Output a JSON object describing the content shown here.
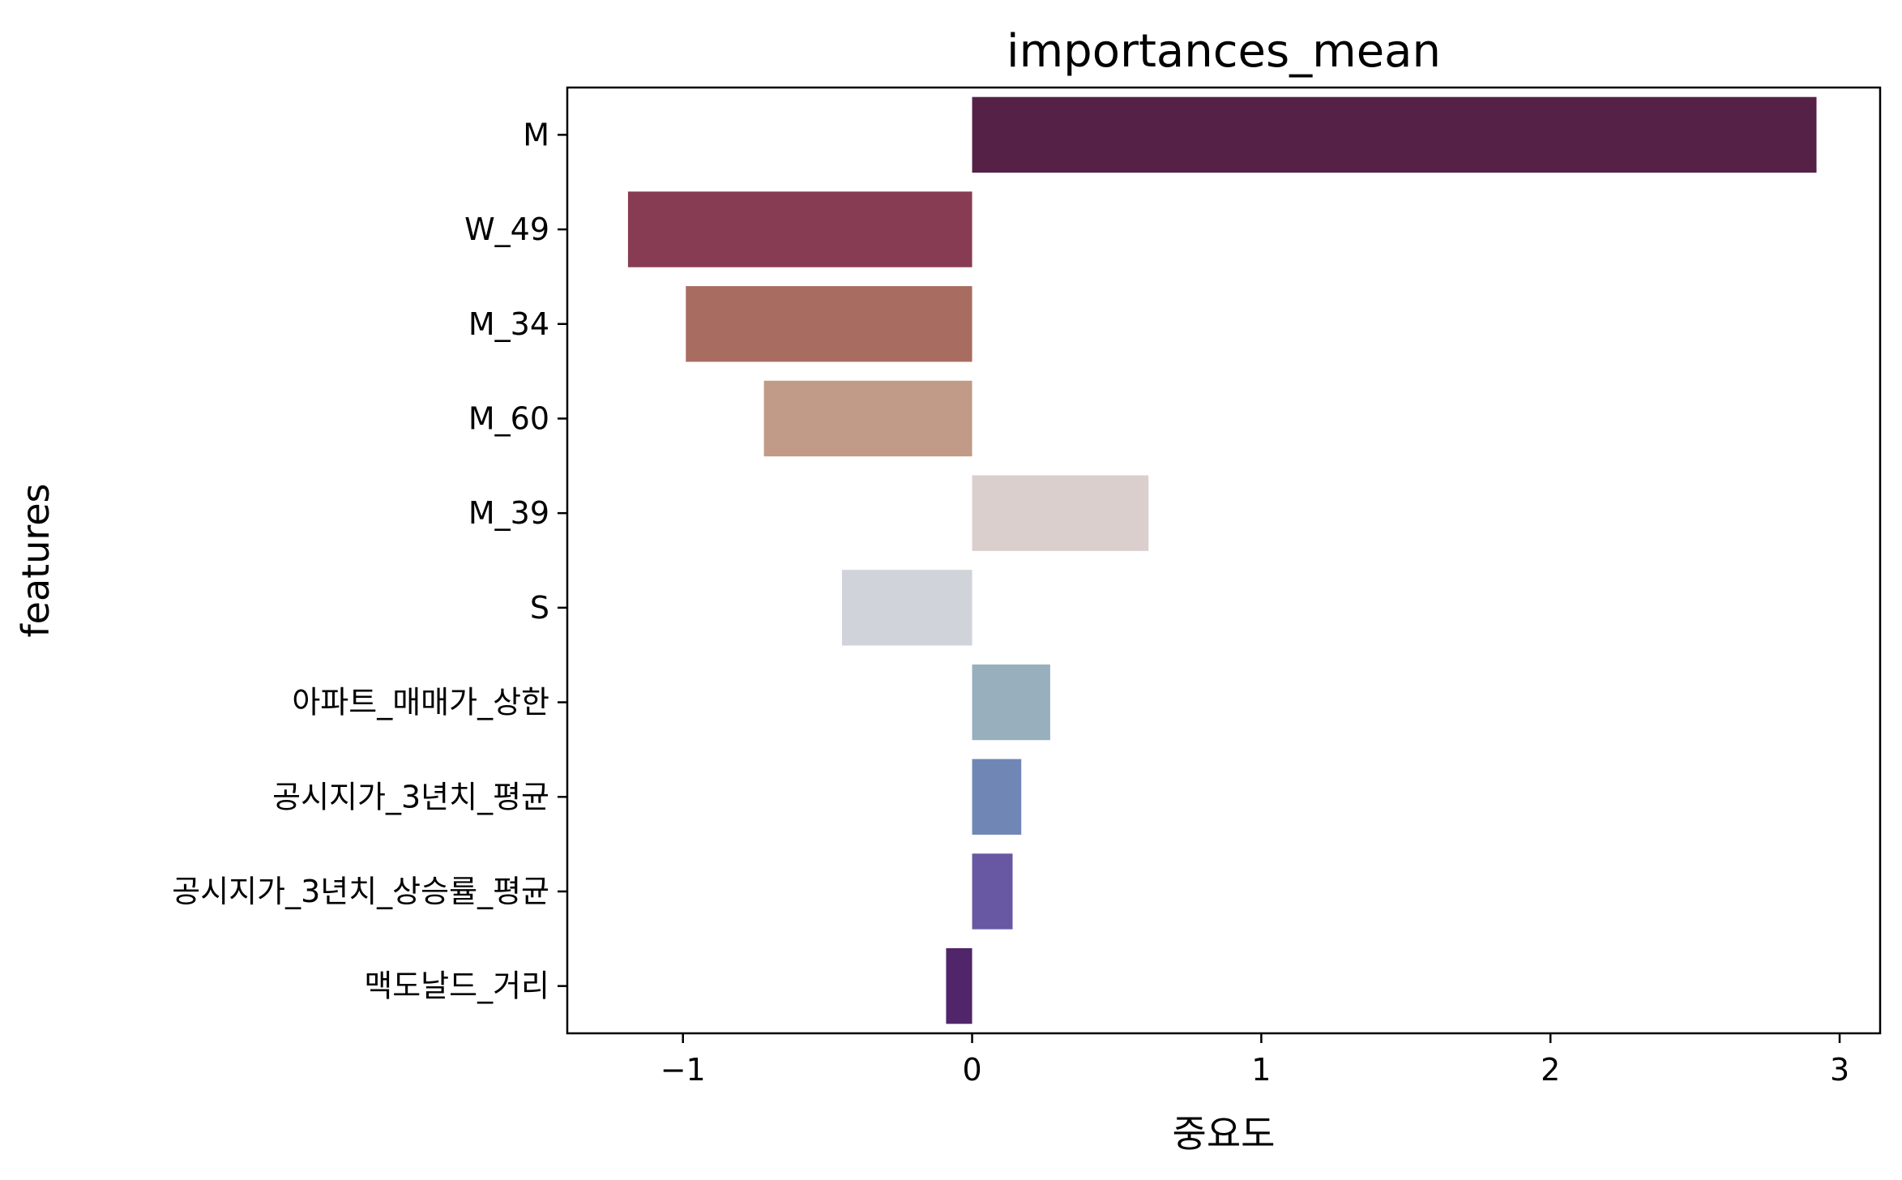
{
  "chart_data": {
    "type": "bar",
    "orientation": "horizontal",
    "title": "importances_mean",
    "xlabel": "중요도",
    "ylabel": "features",
    "categories": [
      "M",
      "W_49",
      "M_34",
      "M_60",
      "M_39",
      "S",
      "아파트_매매가_상한",
      "공시지가_3년치_평균",
      "공시지가_3년치_상승률_평균",
      "맥도날드_거리"
    ],
    "values": [
      2.92,
      -1.19,
      -0.99,
      -0.72,
      0.61,
      -0.45,
      0.27,
      0.17,
      0.14,
      -0.09
    ],
    "colors": [
      "#552146",
      "#883c54",
      "#a96c61",
      "#c19b87",
      "#dbcfcd",
      "#d0d3d9",
      "#98afbd",
      "#7087b6",
      "#6858a3",
      "#512569"
    ],
    "xlim": [
      -1.4,
      3.14
    ],
    "xticks": [
      -1,
      0,
      1,
      2,
      3
    ],
    "xtick_labels": [
      "−1",
      "0",
      "1",
      "2",
      "3"
    ],
    "grid": false,
    "legend": "none"
  }
}
